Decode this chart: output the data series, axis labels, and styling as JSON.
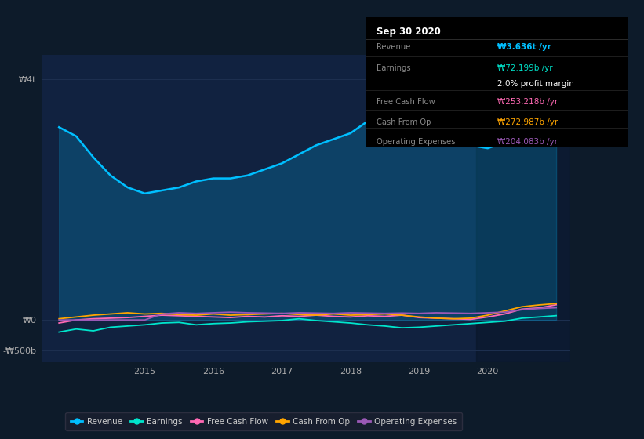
{
  "bg_color": "#0d1b2a",
  "plot_bg_color": "#112240",
  "title": "Sep 30 2020",
  "ytick_labels": [
    "₩4t",
    "₩0",
    "-₩500b"
  ],
  "ytick_values": [
    4000000000000,
    0,
    -500000000000
  ],
  "xlim_start": 2013.5,
  "xlim_end": 2021.2,
  "ylim_min": -700000000000,
  "ylim_max": 4400000000000,
  "xtick_years": [
    2015,
    2016,
    2017,
    2018,
    2019,
    2020
  ],
  "info_box": {
    "title": "Sep 30 2020",
    "rows": [
      {
        "label": "Revenue",
        "value": "₩3.636t /yr",
        "value_color": "#00bfff"
      },
      {
        "label": "Earnings",
        "value": "₩72.199b /yr",
        "value_color": "#00e5cc"
      },
      {
        "label": "",
        "value": "2.0% profit margin",
        "value_color": "#ffffff"
      },
      {
        "label": "Free Cash Flow",
        "value": "₩253.218b /yr",
        "value_color": "#ff69b4"
      },
      {
        "label": "Cash From Op",
        "value": "₩272.987b /yr",
        "value_color": "#ffa500"
      },
      {
        "label": "Operating Expenses",
        "value": "₩204.083b /yr",
        "value_color": "#9b59b6"
      }
    ]
  },
  "series": {
    "revenue": {
      "color": "#00bfff",
      "label": "Revenue",
      "x": [
        2013.75,
        2014.0,
        2014.25,
        2014.5,
        2014.75,
        2015.0,
        2015.25,
        2015.5,
        2015.75,
        2016.0,
        2016.25,
        2016.5,
        2016.75,
        2017.0,
        2017.25,
        2017.5,
        2017.75,
        2018.0,
        2018.25,
        2018.5,
        2018.75,
        2019.0,
        2019.25,
        2019.5,
        2019.75,
        2020.0,
        2020.25,
        2020.5,
        2020.75,
        2021.0
      ],
      "y": [
        3200000000000,
        3050000000000,
        2700000000000,
        2400000000000,
        2200000000000,
        2100000000000,
        2150000000000,
        2200000000000,
        2300000000000,
        2350000000000,
        2350000000000,
        2400000000000,
        2500000000000,
        2600000000000,
        2750000000000,
        2900000000000,
        3000000000000,
        3100000000000,
        3300000000000,
        3500000000000,
        3600000000000,
        3400000000000,
        3200000000000,
        3000000000000,
        2900000000000,
        2850000000000,
        2950000000000,
        3100000000000,
        3200000000000,
        3636000000000
      ]
    },
    "earnings": {
      "color": "#00e5cc",
      "label": "Earnings",
      "x": [
        2013.75,
        2014.0,
        2014.25,
        2014.5,
        2014.75,
        2015.0,
        2015.25,
        2015.5,
        2015.75,
        2016.0,
        2016.25,
        2016.5,
        2016.75,
        2017.0,
        2017.25,
        2017.5,
        2017.75,
        2018.0,
        2018.25,
        2018.5,
        2018.75,
        2019.0,
        2019.25,
        2019.5,
        2019.75,
        2020.0,
        2020.25,
        2020.5,
        2020.75,
        2021.0
      ],
      "y": [
        -200000000000,
        -150000000000,
        -180000000000,
        -120000000000,
        -100000000000,
        -80000000000,
        -50000000000,
        -40000000000,
        -80000000000,
        -60000000000,
        -50000000000,
        -30000000000,
        -20000000000,
        -10000000000,
        20000000000,
        -10000000000,
        -30000000000,
        -50000000000,
        -80000000000,
        -100000000000,
        -130000000000,
        -120000000000,
        -100000000000,
        -80000000000,
        -60000000000,
        -40000000000,
        -20000000000,
        30000000000,
        50000000000,
        72199000000
      ]
    },
    "free_cash_flow": {
      "color": "#ff69b4",
      "label": "Free Cash Flow",
      "x": [
        2013.75,
        2014.0,
        2014.25,
        2014.5,
        2014.75,
        2015.0,
        2015.25,
        2015.5,
        2015.75,
        2016.0,
        2016.25,
        2016.5,
        2016.75,
        2017.0,
        2017.25,
        2017.5,
        2017.75,
        2018.0,
        2018.25,
        2018.5,
        2018.75,
        2019.0,
        2019.25,
        2019.5,
        2019.75,
        2020.0,
        2020.25,
        2020.5,
        2020.75,
        2021.0
      ],
      "y": [
        -50000000000,
        0,
        20000000000,
        30000000000,
        40000000000,
        60000000000,
        80000000000,
        70000000000,
        60000000000,
        50000000000,
        40000000000,
        60000000000,
        50000000000,
        70000000000,
        60000000000,
        80000000000,
        60000000000,
        50000000000,
        70000000000,
        60000000000,
        80000000000,
        40000000000,
        30000000000,
        20000000000,
        10000000000,
        50000000000,
        100000000000,
        180000000000,
        200000000000,
        253218000000
      ]
    },
    "cash_from_op": {
      "color": "#ffa500",
      "label": "Cash From Op",
      "x": [
        2013.75,
        2014.0,
        2014.25,
        2014.5,
        2014.75,
        2015.0,
        2015.25,
        2015.5,
        2015.75,
        2016.0,
        2016.25,
        2016.5,
        2016.75,
        2017.0,
        2017.25,
        2017.5,
        2017.75,
        2018.0,
        2018.25,
        2018.5,
        2018.75,
        2019.0,
        2019.25,
        2019.5,
        2019.75,
        2020.0,
        2020.25,
        2020.5,
        2020.75,
        2021.0
      ],
      "y": [
        20000000000,
        50000000000,
        80000000000,
        100000000000,
        120000000000,
        100000000000,
        110000000000,
        90000000000,
        80000000000,
        100000000000,
        80000000000,
        90000000000,
        100000000000,
        110000000000,
        90000000000,
        80000000000,
        100000000000,
        80000000000,
        90000000000,
        100000000000,
        80000000000,
        50000000000,
        30000000000,
        20000000000,
        30000000000,
        80000000000,
        150000000000,
        220000000000,
        250000000000,
        272987000000
      ]
    },
    "operating_expenses": {
      "color": "#9b59b6",
      "label": "Operating Expenses",
      "x": [
        2013.75,
        2014.0,
        2014.25,
        2014.5,
        2014.75,
        2015.0,
        2015.25,
        2015.5,
        2015.75,
        2016.0,
        2016.25,
        2016.5,
        2016.75,
        2017.0,
        2017.25,
        2017.5,
        2017.75,
        2018.0,
        2018.25,
        2018.5,
        2018.75,
        2019.0,
        2019.25,
        2019.5,
        2019.75,
        2020.0,
        2020.25,
        2020.5,
        2020.75,
        2021.0
      ],
      "y": [
        0,
        0,
        0,
        0,
        0,
        0,
        100000000000,
        120000000000,
        110000000000,
        120000000000,
        130000000000,
        120000000000,
        115000000000,
        110000000000,
        120000000000,
        115000000000,
        110000000000,
        120000000000,
        115000000000,
        110000000000,
        115000000000,
        110000000000,
        120000000000,
        115000000000,
        110000000000,
        120000000000,
        130000000000,
        170000000000,
        190000000000,
        204083000000
      ]
    }
  },
  "shaded_region_x_start": 2019.83,
  "legend_items": [
    {
      "label": "Revenue",
      "color": "#00bfff"
    },
    {
      "label": "Earnings",
      "color": "#00e5cc"
    },
    {
      "label": "Free Cash Flow",
      "color": "#ff69b4"
    },
    {
      "label": "Cash From Op",
      "color": "#ffa500"
    },
    {
      "label": "Operating Expenses",
      "color": "#9b59b6"
    }
  ]
}
